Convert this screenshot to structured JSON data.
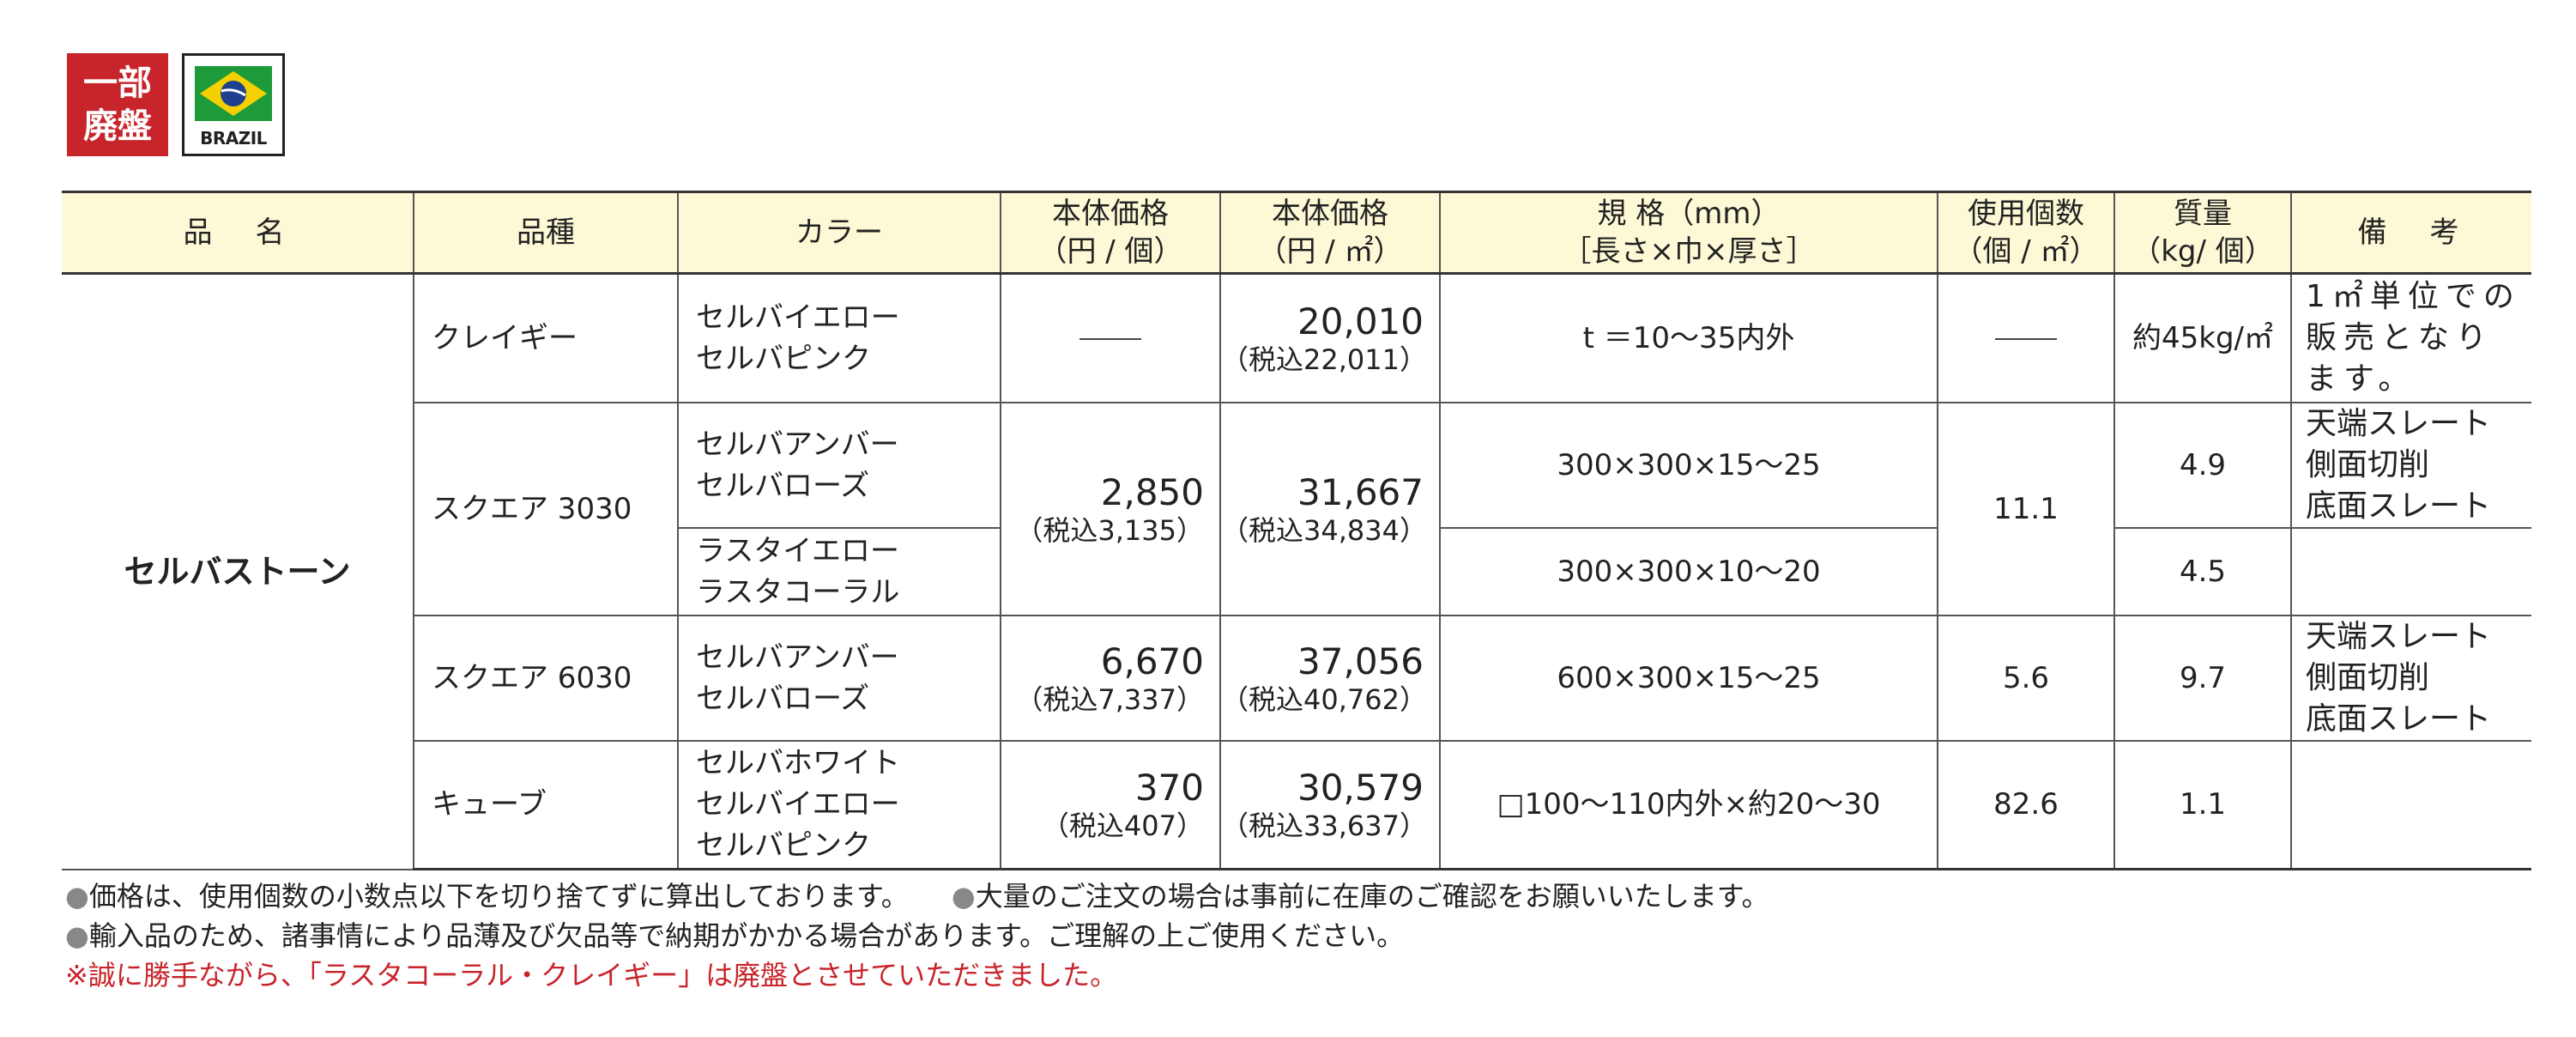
{
  "badges": {
    "red_line1": "一部",
    "red_line2": "廃盤",
    "flag_label": "BRAZIL",
    "flag_colors": {
      "green": "#1f9a3a",
      "yellow": "#f5d000",
      "blue": "#1f3f8f"
    }
  },
  "table": {
    "headers": {
      "name": "品　名",
      "type": "品種",
      "color": "カラー",
      "price_piece_1": "本体価格",
      "price_piece_2": "（円 / 個）",
      "price_sqm_1": "本体価格",
      "price_sqm_2": "（円 / ㎡）",
      "spec_1": "規 格（mm）",
      "spec_2": "［長さ×巾×厚さ］",
      "usage_1": "使用個数",
      "usage_2": "（個 / ㎡）",
      "weight_1": "質量",
      "weight_2": "（kg/ 個）",
      "notes": "備　考"
    },
    "product_name": "セルバストーン",
    "rows": [
      {
        "type": "クレイギー",
        "colors": [
          "セルバイエロー",
          "セルバピンク"
        ],
        "price_piece": "——",
        "price_sqm": "20,010",
        "price_sqm_tax": "（税込22,011）",
        "spec": "t ＝10〜35内外",
        "usage": "——",
        "weight": "約45kg/㎡",
        "notes": "1㎡単位での販売となります。"
      },
      {
        "type": "スクエア 3030",
        "colors_a": [
          "セルバアンバー",
          "セルバローズ"
        ],
        "colors_b": [
          "ラスタイエロー",
          "ラスタコーラル"
        ],
        "price_piece": "2,850",
        "price_piece_tax": "（税込3,135）",
        "price_sqm": "31,667",
        "price_sqm_tax": "（税込34,834）",
        "spec_a": "300×300×15〜25",
        "spec_b": "300×300×10〜20",
        "usage": "11.1",
        "weight_a": "4.9",
        "weight_b": "4.5",
        "notes": [
          "天端スレート",
          "側面切削",
          "底面スレート"
        ]
      },
      {
        "type": "スクエア 6030",
        "colors": [
          "セルバアンバー",
          "セルバローズ"
        ],
        "price_piece": "6,670",
        "price_piece_tax": "（税込7,337）",
        "price_sqm": "37,056",
        "price_sqm_tax": "（税込40,762）",
        "spec": "600×300×15〜25",
        "usage": "5.6",
        "weight": "9.7",
        "notes": [
          "天端スレート",
          "側面切削",
          "底面スレート"
        ]
      },
      {
        "type": "キューブ",
        "colors": [
          "セルバホワイト",
          "セルバイエロー",
          "セルバピンク"
        ],
        "price_piece": "370",
        "price_piece_tax": "（税込407）",
        "price_sqm": "30,579",
        "price_sqm_tax": "（税込33,637）",
        "spec": "□100〜110内外×約20〜30",
        "usage": "82.6",
        "weight": "1.1"
      }
    ]
  },
  "footnotes": {
    "line1a": "価格は、使用個数の小数点以下を切り捨てずに算出しております。",
    "line1b": "大量のご注文の場合は事前に在庫のご確認をお願いいたします。",
    "line2": "輸入品のため、諸事情により品薄及び欠品等で納期がかかる場合があります。ご理解の上ご使用ください。",
    "line3": "※誠に勝手ながら、「ラスタコーラル・クレイギー」は廃盤とさせていただきました。",
    "bullet": "●"
  }
}
